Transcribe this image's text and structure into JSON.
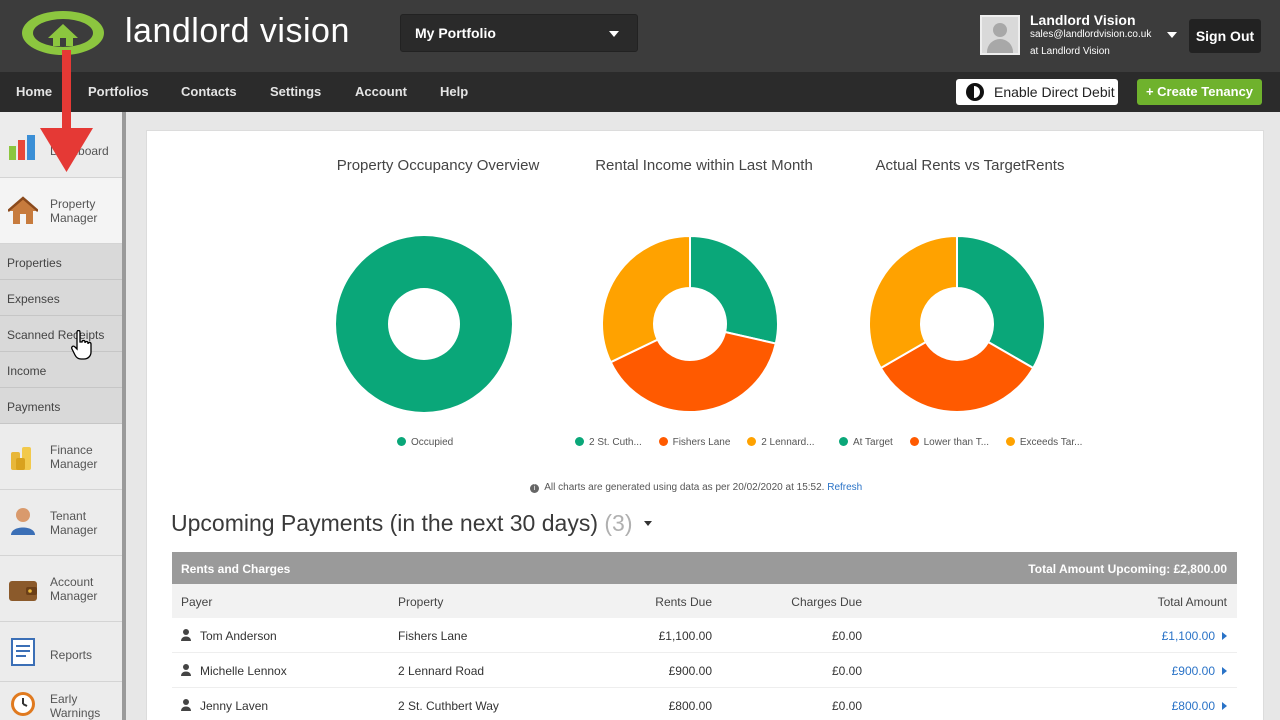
{
  "header": {
    "logo_text": "landlord vision",
    "portfolio_select": "My Portfolio",
    "user_name": "Landlord Vision",
    "user_email": "sales@landlordvision.co.uk",
    "user_company": "at Landlord Vision",
    "sign_out": "Sign Out"
  },
  "nav": {
    "items": [
      "Home",
      "Portfolios",
      "Contacts",
      "Settings",
      "Account",
      "Help"
    ],
    "enable_direct_debit": "Enable Direct Debit",
    "create_tenancy": "+ Create Tenancy"
  },
  "sidebar": {
    "dashboard": "Dashboard",
    "property_manager": [
      "Property",
      "Manager"
    ],
    "sub_items": [
      "Properties",
      "Expenses",
      "Scanned Receipts",
      "Income",
      "Payments"
    ],
    "finance_manager": [
      "Finance",
      "Manager"
    ],
    "tenant_manager": [
      "Tenant",
      "Manager"
    ],
    "account_manager": [
      "Account",
      "Manager"
    ],
    "reports": "Reports",
    "early_warnings": [
      "Early",
      "Warnings"
    ]
  },
  "charts_note": {
    "text": "All charts are generated using data as per 20/02/2020 at 15:52.",
    "refresh": "Refresh"
  },
  "chart_data": [
    {
      "type": "pie",
      "title": "Property Occupancy Overview",
      "donut": true,
      "labels": [
        "Occupied"
      ],
      "values": [
        100
      ],
      "colors": [
        "#0aa779"
      ]
    },
    {
      "type": "pie",
      "title": "Rental Income within Last Month",
      "donut": true,
      "labels": [
        "2 St. Cuth...",
        "Fishers Lane",
        "2 Lennard..."
      ],
      "values": [
        800,
        1100,
        900
      ],
      "colors": [
        "#0aa779",
        "#ff5a00",
        "#ffa200"
      ]
    },
    {
      "type": "pie",
      "title": "Actual Rents vs TargetRents",
      "donut": true,
      "labels": [
        "At Target",
        "Lower than T...",
        "Exceeds Tar..."
      ],
      "values": [
        1,
        1,
        1
      ],
      "colors": [
        "#0aa779",
        "#ff5a00",
        "#ffa200"
      ]
    }
  ],
  "upcoming": {
    "title": "Upcoming Payments (in the next 30 days)",
    "count": "(3)"
  },
  "table": {
    "section_label": "Rents and Charges",
    "total_upcoming": "Total Amount Upcoming: £2,800.00",
    "columns": [
      "Payer",
      "Property",
      "Rents Due",
      "Charges Due",
      "Total Amount"
    ],
    "rows": [
      {
        "payer": "Tom Anderson",
        "property": "Fishers Lane",
        "rents": "£1,100.00",
        "charges": "£0.00",
        "total": "£1,100.00"
      },
      {
        "payer": "Michelle Lennox",
        "property": "2 Lennard Road",
        "rents": "£900.00",
        "charges": "£0.00",
        "total": "£900.00"
      },
      {
        "payer": "Jenny Laven",
        "property": "2 St. Cuthbert Way",
        "rents": "£800.00",
        "charges": "£0.00",
        "total": "£800.00"
      }
    ]
  }
}
